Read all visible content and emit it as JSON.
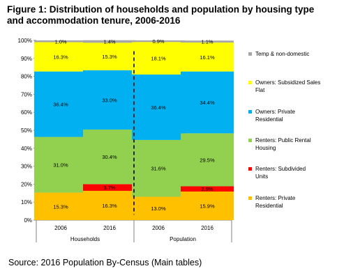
{
  "title": "Figure 1: Distribution of households and population by housing type and accommodation tenure, 2006-2016",
  "source": "Source: 2016 Population By-Census (Main tables)",
  "chart_data": {
    "type": "bar",
    "stacked": true,
    "groups": [
      "Households",
      "Population"
    ],
    "categories": [
      "2006",
      "2016",
      "2006",
      "2016"
    ],
    "category_group": [
      0,
      0,
      1,
      1
    ],
    "ylim": [
      0,
      100
    ],
    "yticks": [
      "0%",
      "10%",
      "20%",
      "30%",
      "40%",
      "50%",
      "60%",
      "70%",
      "80%",
      "90%",
      "100%"
    ],
    "legend_position": "right",
    "series": [
      {
        "name": "Renters: Private Residential",
        "color": "#FFC000",
        "values": [
          15.3,
          16.3,
          13.0,
          15.9
        ],
        "labels": [
          "15.3%",
          "16.3%",
          "13.0%",
          "15.9%"
        ]
      },
      {
        "name": "Renters: Subdivided Units",
        "color": "#FF0000",
        "values": [
          0,
          3.7,
          0,
          2.9
        ],
        "labels": [
          "",
          "3.7%",
          "",
          "2.9%"
        ]
      },
      {
        "name": "Renters: Public Rental Housing",
        "color": "#92D050",
        "values": [
          31.0,
          30.4,
          31.6,
          29.5
        ],
        "labels": [
          "31.0%",
          "30.4%",
          "31.6%",
          "29.5%"
        ]
      },
      {
        "name": "Owners:  Private Residential",
        "color": "#00B0F0",
        "values": [
          36.4,
          33.0,
          36.4,
          34.4
        ],
        "labels": [
          "36.4%",
          "33.0%",
          "36.4%",
          "34.4%"
        ]
      },
      {
        "name": "Owners: Subsidized Sales Flat",
        "color": "#FFFF00",
        "values": [
          16.3,
          15.3,
          18.1,
          16.1
        ],
        "labels": [
          "16.3%",
          "15.3%",
          "18.1%",
          "16.1%"
        ]
      },
      {
        "name": "Temp & non-domestic",
        "color": "#A6A6A6",
        "values": [
          1.0,
          1.4,
          0.9,
          1.1
        ],
        "labels": [
          "1.0%",
          "1.4%",
          "0.9%",
          "1.1%"
        ]
      }
    ]
  }
}
